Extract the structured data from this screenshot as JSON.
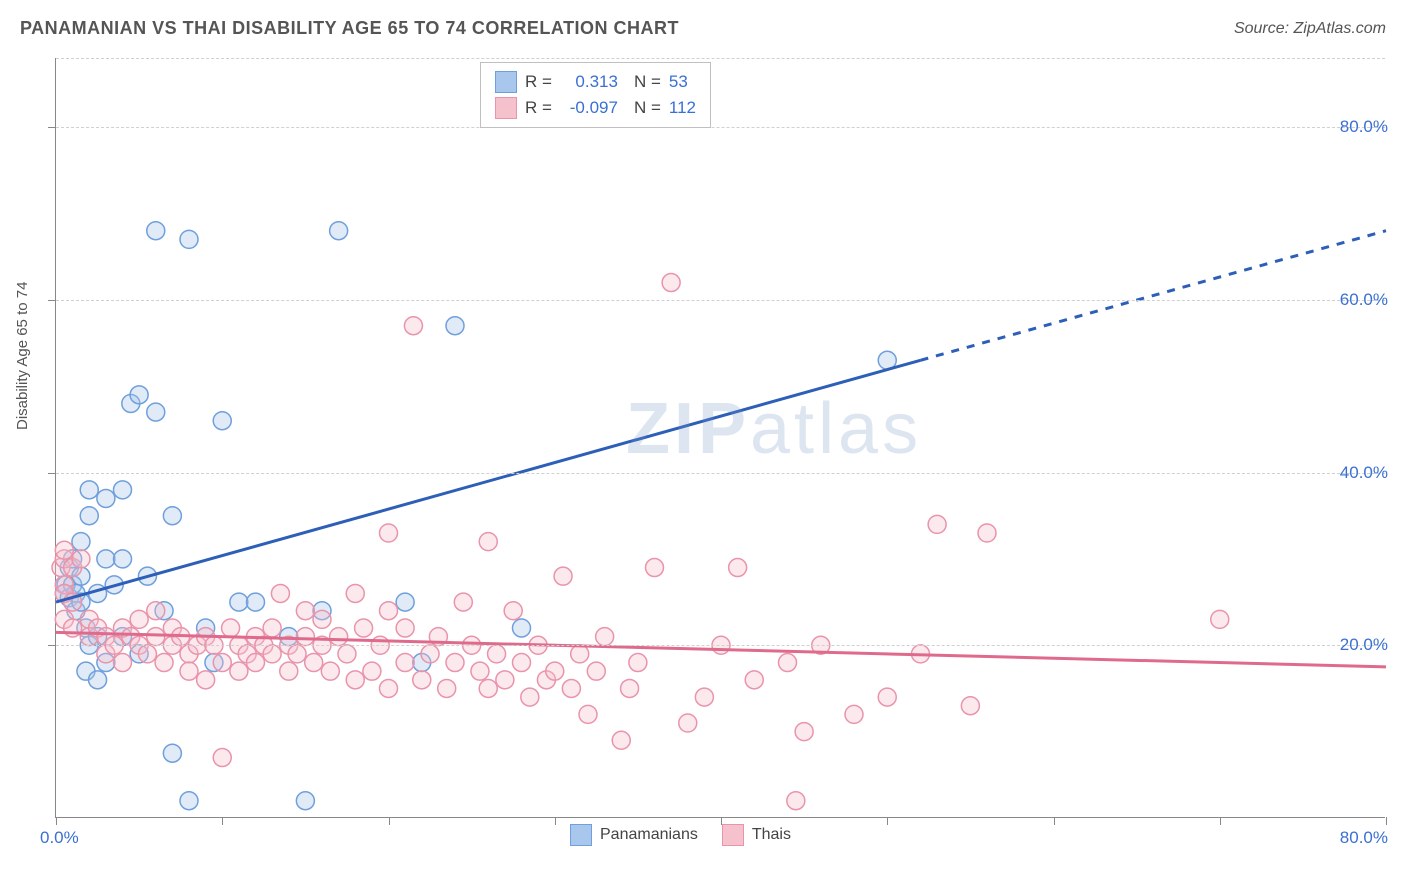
{
  "header": {
    "title": "PANAMANIAN VS THAI DISABILITY AGE 65 TO 74 CORRELATION CHART",
    "source_label": "Source: ZipAtlas.com"
  },
  "chart": {
    "type": "scatter",
    "ylabel": "Disability Age 65 to 74",
    "xlim": [
      0,
      80
    ],
    "ylim": [
      0,
      88
    ],
    "x_ticks": [
      0,
      10,
      20,
      30,
      40,
      50,
      60,
      70,
      80
    ],
    "y_gridlines": [
      20,
      40,
      60,
      80
    ],
    "y_tick_labels": [
      "20.0%",
      "40.0%",
      "60.0%",
      "80.0%"
    ],
    "x_origin_label": "0.0%",
    "x_end_label": "80.0%",
    "background_color": "#ffffff",
    "grid_color": "#d0d0d0",
    "axis_color": "#888888",
    "marker_radius": 9,
    "marker_stroke_width": 1.5,
    "marker_fill_opacity": 0.35,
    "watermark_text": "ZIPatlas",
    "series": [
      {
        "name": "Panamanians",
        "color_fill": "#a9c7ec",
        "color_stroke": "#6f9fdc",
        "R": "0.313",
        "N": "53",
        "trend": {
          "x1": 0,
          "y1": 25,
          "x2_solid": 52,
          "y2_solid": 53,
          "x2_dash": 80,
          "y2_dash": 68,
          "stroke": "#2d5fb8",
          "width": 3
        },
        "points": [
          [
            0.5,
            26
          ],
          [
            0.6,
            27
          ],
          [
            0.8,
            25.5
          ],
          [
            0.8,
            29
          ],
          [
            1,
            27
          ],
          [
            1,
            30
          ],
          [
            1.2,
            26
          ],
          [
            1.2,
            24
          ],
          [
            1.5,
            25
          ],
          [
            1.5,
            32
          ],
          [
            1.5,
            28
          ],
          [
            1.8,
            22
          ],
          [
            1.8,
            17
          ],
          [
            2,
            35
          ],
          [
            2,
            38
          ],
          [
            2,
            20
          ],
          [
            2.5,
            26
          ],
          [
            2.5,
            16
          ],
          [
            2.5,
            21
          ],
          [
            3,
            37
          ],
          [
            3,
            30
          ],
          [
            3,
            18
          ],
          [
            3.5,
            27
          ],
          [
            4,
            38
          ],
          [
            4,
            21
          ],
          [
            4,
            30
          ],
          [
            4.5,
            48
          ],
          [
            5,
            49
          ],
          [
            5,
            19
          ],
          [
            5.5,
            28
          ],
          [
            6,
            47
          ],
          [
            6,
            68
          ],
          [
            6.5,
            24
          ],
          [
            7,
            35
          ],
          [
            7,
            7.5
          ],
          [
            8,
            67
          ],
          [
            8,
            2
          ],
          [
            9,
            22
          ],
          [
            9.5,
            18
          ],
          [
            10,
            46
          ],
          [
            11,
            25
          ],
          [
            12,
            25
          ],
          [
            14,
            21
          ],
          [
            15,
            2
          ],
          [
            16,
            24
          ],
          [
            17,
            68
          ],
          [
            21,
            25
          ],
          [
            22,
            18
          ],
          [
            24,
            57
          ],
          [
            28,
            22
          ],
          [
            50,
            53
          ]
        ]
      },
      {
        "name": "Thais",
        "color_fill": "#f5c1cd",
        "color_stroke": "#e994aa",
        "R": "-0.097",
        "N": "112",
        "trend": {
          "x1": 0,
          "y1": 21.5,
          "x2_solid": 80,
          "y2_solid": 17.5,
          "x2_dash": 80,
          "y2_dash": 17.5,
          "stroke": "#e06a8c",
          "width": 3
        },
        "points": [
          [
            0.3,
            29
          ],
          [
            0.5,
            27
          ],
          [
            0.5,
            30
          ],
          [
            0.5,
            31
          ],
          [
            0.5,
            26
          ],
          [
            0.5,
            23
          ],
          [
            1,
            29
          ],
          [
            1,
            22
          ],
          [
            1,
            25
          ],
          [
            1.5,
            30
          ],
          [
            2,
            23
          ],
          [
            2,
            21
          ],
          [
            2.5,
            22
          ],
          [
            3,
            21
          ],
          [
            3,
            19
          ],
          [
            3.5,
            20
          ],
          [
            4,
            22
          ],
          [
            4,
            18
          ],
          [
            4.5,
            21
          ],
          [
            5,
            20
          ],
          [
            5,
            23
          ],
          [
            5.5,
            19
          ],
          [
            6,
            21
          ],
          [
            6,
            24
          ],
          [
            6.5,
            18
          ],
          [
            7,
            20
          ],
          [
            7,
            22
          ],
          [
            7.5,
            21
          ],
          [
            8,
            19
          ],
          [
            8,
            17
          ],
          [
            8.5,
            20
          ],
          [
            9,
            21
          ],
          [
            9,
            16
          ],
          [
            9.5,
            20
          ],
          [
            10,
            7
          ],
          [
            10,
            18
          ],
          [
            10.5,
            22
          ],
          [
            11,
            20
          ],
          [
            11,
            17
          ],
          [
            11.5,
            19
          ],
          [
            12,
            21
          ],
          [
            12,
            18
          ],
          [
            12.5,
            20
          ],
          [
            13,
            19
          ],
          [
            13,
            22
          ],
          [
            13.5,
            26
          ],
          [
            14,
            17
          ],
          [
            14,
            20
          ],
          [
            14.5,
            19
          ],
          [
            15,
            21
          ],
          [
            15,
            24
          ],
          [
            15.5,
            18
          ],
          [
            16,
            20
          ],
          [
            16,
            23
          ],
          [
            16.5,
            17
          ],
          [
            17,
            21
          ],
          [
            17.5,
            19
          ],
          [
            18,
            26
          ],
          [
            18,
            16
          ],
          [
            18.5,
            22
          ],
          [
            19,
            17
          ],
          [
            19.5,
            20
          ],
          [
            20,
            15
          ],
          [
            20,
            24
          ],
          [
            20,
            33
          ],
          [
            21,
            18
          ],
          [
            21,
            22
          ],
          [
            21.5,
            57
          ],
          [
            22,
            16
          ],
          [
            22.5,
            19
          ],
          [
            23,
            21
          ],
          [
            23.5,
            15
          ],
          [
            24,
            18
          ],
          [
            24.5,
            25
          ],
          [
            25,
            20
          ],
          [
            25.5,
            17
          ],
          [
            26,
            15
          ],
          [
            26,
            32
          ],
          [
            26.5,
            19
          ],
          [
            27,
            16
          ],
          [
            27.5,
            24
          ],
          [
            28,
            18
          ],
          [
            28.5,
            14
          ],
          [
            29,
            20
          ],
          [
            29.5,
            16
          ],
          [
            30,
            17
          ],
          [
            30.5,
            28
          ],
          [
            31,
            15
          ],
          [
            31.5,
            19
          ],
          [
            32,
            12
          ],
          [
            32.5,
            17
          ],
          [
            33,
            21
          ],
          [
            34,
            9
          ],
          [
            34.5,
            15
          ],
          [
            35,
            18
          ],
          [
            36,
            29
          ],
          [
            37,
            62
          ],
          [
            38,
            11
          ],
          [
            39,
            14
          ],
          [
            40,
            20
          ],
          [
            41,
            29
          ],
          [
            42,
            16
          ],
          [
            44,
            18
          ],
          [
            44.5,
            2
          ],
          [
            45,
            10
          ],
          [
            46,
            20
          ],
          [
            48,
            12
          ],
          [
            50,
            14
          ],
          [
            52,
            19
          ],
          [
            53,
            34
          ],
          [
            55,
            13
          ],
          [
            56,
            33
          ],
          [
            70,
            23
          ]
        ]
      }
    ],
    "legend_bottom": [
      {
        "label": "Panamanians",
        "fill": "#a9c7ec",
        "stroke": "#6f9fdc"
      },
      {
        "label": "Thais",
        "fill": "#f5c1cd",
        "stroke": "#e994aa"
      }
    ]
  }
}
